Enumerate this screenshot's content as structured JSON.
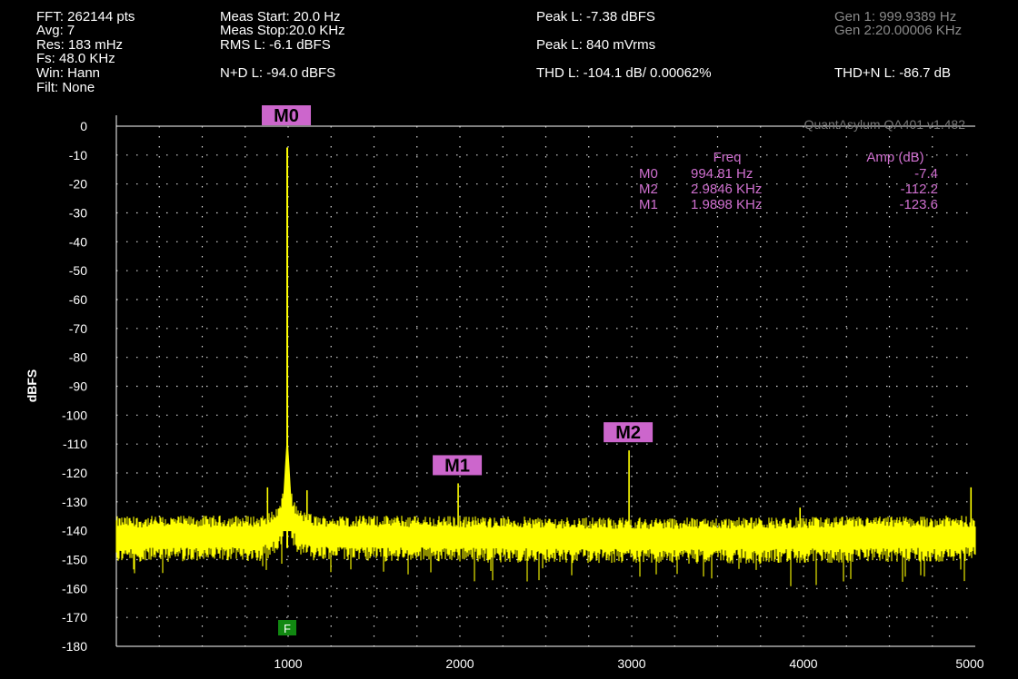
{
  "header": {
    "fft": "FFT: 262144 pts",
    "avg": "Avg: 7",
    "res": "Res: 183 mHz",
    "fs": "Fs: 48.0 KHz",
    "win": "Win: Hann",
    "filt": "Filt: None",
    "meas_start": "Meas Start: 20.0 Hz",
    "meas_stop": "Meas Stop:20.0 KHz",
    "rms": "RMS L: -6.1 dBFS",
    "nd": "N+D L: -94.0 dBFS",
    "peak_dbfs": "Peak L: -7.38 dBFS",
    "peak_mv": "Peak L: 840 mVrms",
    "thd": "THD L: -104.1 dB/ 0.00062%",
    "thdn": "THD+N L: -86.7 dB",
    "gen1": "Gen 1: 999.9389 Hz",
    "gen2": "Gen 2:20.00006 KHz"
  },
  "colors": {
    "trace": "#ffff00",
    "marker_bg": "#cc66cc",
    "marker_text": "#000000",
    "table_text": "#d070d0",
    "grid": "#d8d8d8",
    "filter_marker": "#118811"
  },
  "chart_data": {
    "type": "line",
    "watermark": "QuantAsylum QA401 v1.482",
    "ylabel": "dBFS",
    "xlabel": "",
    "xlim": [
      0,
      5000
    ],
    "ylim": [
      -180,
      0
    ],
    "x_ticks": [
      1000,
      2000,
      3000,
      4000,
      5000
    ],
    "y_ticks": [
      0,
      -10,
      -20,
      -30,
      -40,
      -50,
      -60,
      -70,
      -80,
      -90,
      -100,
      -110,
      -120,
      -130,
      -140,
      -150,
      -160,
      -170,
      -180
    ],
    "grid": true,
    "noise_floor_dbfs": -142,
    "series": [
      {
        "peaks": [
          {
            "x": 994.81,
            "y": -7.4
          },
          {
            "x": 1989.8,
            "y": -123.6
          },
          {
            "x": 2984.6,
            "y": -112.2
          },
          {
            "x": 3980,
            "y": -132
          },
          {
            "x": 4975,
            "y": -125
          },
          {
            "x": 880,
            "y": -125
          },
          {
            "x": 1110,
            "y": -126
          }
        ]
      }
    ],
    "markers": [
      {
        "label": "M0",
        "x": 994.81,
        "y": -7.4
      },
      {
        "label": "M1",
        "x": 1989.8,
        "y": -123.6
      },
      {
        "label": "M2",
        "x": 2984.6,
        "y": -112.2
      }
    ],
    "filter_marker": {
      "label": "F",
      "x": 1000
    },
    "marker_table": {
      "headers": [
        "Freq",
        "Amp (dB)"
      ],
      "rows": [
        {
          "name": "M0",
          "freq": "994.81 Hz",
          "amp": "-7.4"
        },
        {
          "name": "M2",
          "freq": "2.9846 KHz",
          "amp": "-112.2"
        },
        {
          "name": "M1",
          "freq": "1.9898 KHz",
          "amp": "-123.6"
        }
      ]
    }
  }
}
